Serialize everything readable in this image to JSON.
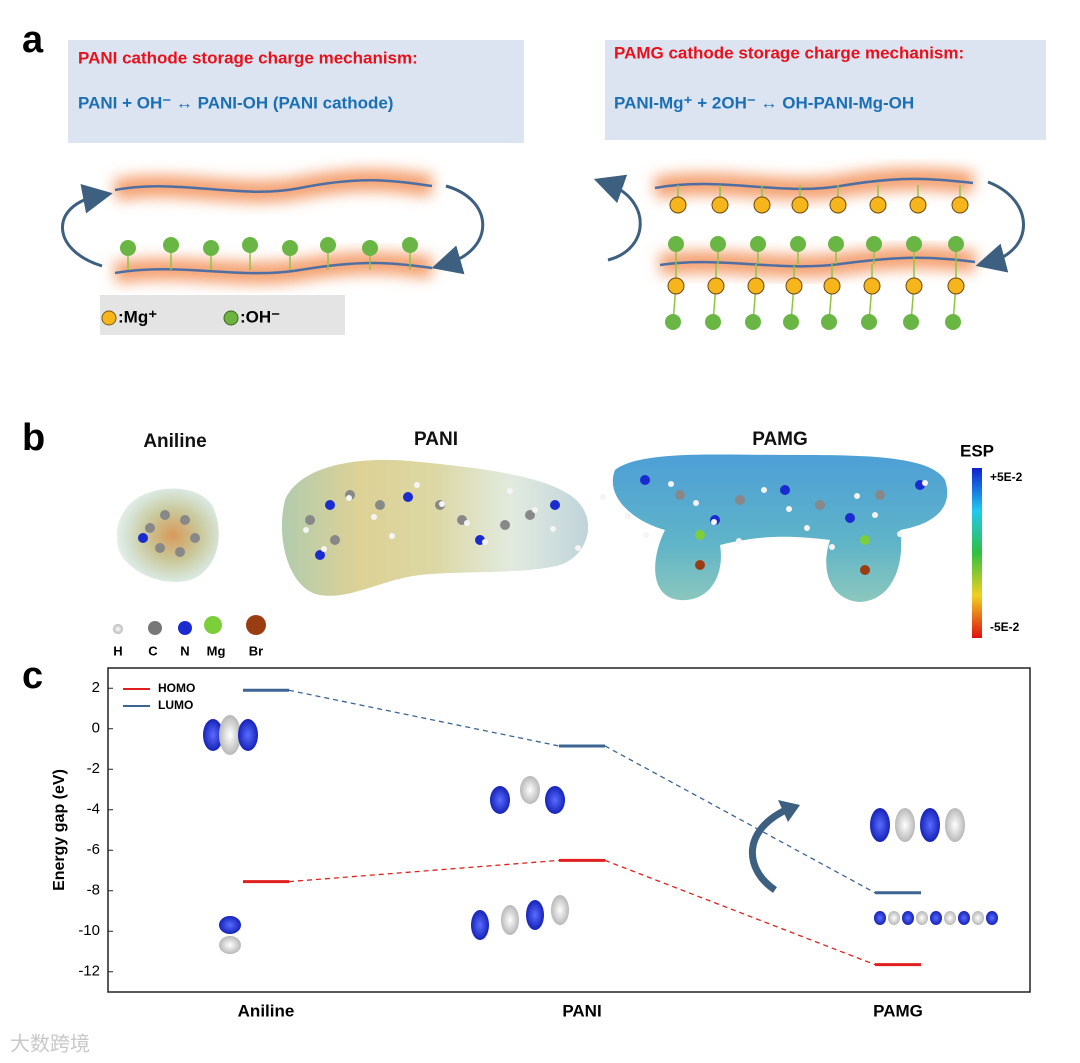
{
  "panel_a": {
    "label": "a",
    "left": {
      "title": "PANI cathode storage charge mechanism:",
      "equation": "PANI + OH⁻ ↔ PANI-OH (PANI cathode)"
    },
    "right": {
      "title": "PAMG cathode storage charge mechanism:",
      "equation": "PANI-Mg⁺ + 2OH⁻ ↔ OH-PANI-Mg-OH"
    },
    "legend": [
      ":Mg⁺",
      ":OH⁻"
    ]
  },
  "panel_b": {
    "label": "b",
    "molecules": [
      "Aniline",
      "PANI",
      "PAMG"
    ],
    "colorbar": {
      "title": "ESP",
      "max_label": "+5E-2",
      "min_label": "-5E-2"
    },
    "atoms": [
      "H",
      "C",
      "N",
      "Mg",
      "Br"
    ]
  },
  "panel_c_label": "c",
  "chart_data": {
    "type": "energy-level",
    "y_label": "Energy gap (eV)",
    "categories": [
      "Aniline",
      "PANI",
      "PAMG"
    ],
    "series": [
      {
        "name": "HOMO",
        "color": "#e0201f",
        "values": [
          -7.55,
          -6.5,
          -11.65
        ]
      },
      {
        "name": "LUMO",
        "color": "#3d6592",
        "values": [
          1.9,
          -0.85,
          -8.1
        ]
      }
    ],
    "ylim": [
      -13,
      3
    ],
    "yticks": [
      -12,
      -10,
      -8,
      -6,
      -4,
      -2,
      0,
      2
    ]
  },
  "watermark": "大数跨境"
}
